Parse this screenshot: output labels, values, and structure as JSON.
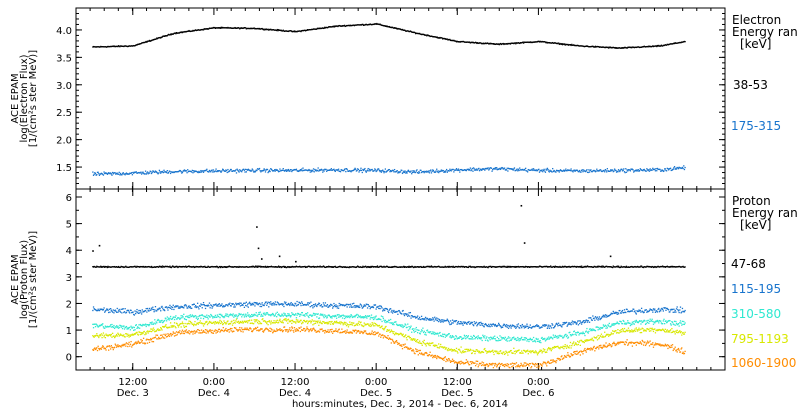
{
  "colors": {
    "black": "#000000",
    "blue": "#1874cd",
    "cyan": "#2ee8d0",
    "yellow": "#d8e800",
    "orange": "#ff8c00"
  },
  "chart_data": [
    {
      "type": "scatter",
      "panel": "electron",
      "ylabel": [
        "ACE EPAM",
        "log(Electron Flux)",
        "[1/(cm²s ster MeV)]"
      ],
      "ylim": [
        1.1,
        4.4
      ],
      "yticks": [
        "4.0",
        "3.5",
        "3.0",
        "2.5",
        "2.0",
        "1.5"
      ],
      "yticks_values": [
        4.0,
        3.5,
        3.0,
        2.5,
        2.0,
        1.5
      ],
      "legend_title": [
        "Electron",
        "Energy ran",
        "[keV]"
      ],
      "series": [
        {
          "name": "38-53",
          "color": "#000000",
          "x": [
            0.0,
            0.25,
            0.5,
            0.75,
            1.0,
            1.25,
            1.5,
            1.75,
            2.0,
            2.25,
            2.5,
            2.75,
            3.0,
            3.25,
            3.5,
            3.65
          ],
          "y": [
            3.7,
            3.72,
            3.95,
            4.05,
            4.04,
            3.98,
            4.08,
            4.12,
            3.95,
            3.8,
            3.75,
            3.8,
            3.72,
            3.68,
            3.72,
            3.8
          ]
        },
        {
          "name": "175-315",
          "color": "#1874cd",
          "x": [
            0.0,
            0.25,
            0.5,
            0.75,
            1.0,
            1.25,
            1.5,
            1.75,
            2.0,
            2.25,
            2.5,
            2.75,
            3.0,
            3.25,
            3.5,
            3.65
          ],
          "y": [
            1.38,
            1.4,
            1.43,
            1.44,
            1.45,
            1.45,
            1.46,
            1.45,
            1.42,
            1.46,
            1.48,
            1.45,
            1.44,
            1.45,
            1.46,
            1.5
          ]
        }
      ]
    },
    {
      "type": "scatter",
      "panel": "proton",
      "ylabel": [
        "ACE EPAM",
        "log(Proton Flux)",
        "[1/(cm²s ster MeV)]"
      ],
      "ylim": [
        -0.5,
        6.3
      ],
      "yticks": [
        "6",
        "5",
        "4",
        "3",
        "2",
        "1",
        "0"
      ],
      "yticks_values": [
        6,
        5,
        4,
        3,
        2,
        1,
        0
      ],
      "legend_title": [
        "Proton",
        "Energy ran",
        "[keV]"
      ],
      "series": [
        {
          "name": "47-68",
          "color": "#000000",
          "x": [
            0.0,
            0.5,
            1.0,
            1.5,
            2.0,
            2.5,
            3.0,
            3.5,
            3.65
          ],
          "y": [
            3.4,
            3.4,
            3.4,
            3.4,
            3.4,
            3.4,
            3.4,
            3.4,
            3.4
          ],
          "spikes": [
            [
              0.0,
              4.0
            ],
            [
              0.04,
              4.2
            ],
            [
              1.01,
              4.9
            ],
            [
              1.02,
              4.1
            ],
            [
              1.04,
              3.7
            ],
            [
              1.15,
              3.8
            ],
            [
              1.25,
              3.6
            ],
            [
              2.64,
              5.7
            ],
            [
              2.66,
              4.3
            ],
            [
              3.19,
              3.8
            ]
          ]
        },
        {
          "name": "115-195",
          "color": "#1874cd",
          "x": [
            0.0,
            0.25,
            0.5,
            0.75,
            1.0,
            1.25,
            1.5,
            1.75,
            2.0,
            2.25,
            2.5,
            2.75,
            3.0,
            3.25,
            3.5,
            3.65
          ],
          "y": [
            1.8,
            1.7,
            1.9,
            1.95,
            2.0,
            2.0,
            1.95,
            1.9,
            1.5,
            1.3,
            1.2,
            1.15,
            1.3,
            1.7,
            1.8,
            1.75
          ]
        },
        {
          "name": "310-580",
          "color": "#2ee8d0",
          "x": [
            0.0,
            0.25,
            0.5,
            0.75,
            1.0,
            1.25,
            1.5,
            1.75,
            2.0,
            2.25,
            2.5,
            2.75,
            3.0,
            3.25,
            3.5,
            3.65
          ],
          "y": [
            1.2,
            1.1,
            1.5,
            1.55,
            1.6,
            1.6,
            1.55,
            1.5,
            1.0,
            0.75,
            0.7,
            0.65,
            0.9,
            1.3,
            1.35,
            1.25
          ]
        },
        {
          "name": "795-1193",
          "color": "#d8e800",
          "x": [
            0.0,
            0.25,
            0.5,
            0.75,
            1.0,
            1.25,
            1.5,
            1.75,
            2.0,
            2.25,
            2.5,
            2.75,
            3.0,
            3.25,
            3.5,
            3.65
          ],
          "y": [
            0.8,
            0.85,
            1.2,
            1.3,
            1.35,
            1.35,
            1.3,
            1.2,
            0.6,
            0.25,
            0.2,
            0.2,
            0.55,
            1.0,
            1.05,
            0.9
          ]
        },
        {
          "name": "1060-1900",
          "color": "#ff8c00",
          "x": [
            0.0,
            0.25,
            0.5,
            0.75,
            1.0,
            1.25,
            1.5,
            1.75,
            2.0,
            2.25,
            2.5,
            2.75,
            3.0,
            3.25,
            3.5,
            3.65
          ],
          "y": [
            0.3,
            0.5,
            0.9,
            1.0,
            1.05,
            1.05,
            1.0,
            0.9,
            0.2,
            -0.2,
            -0.3,
            -0.3,
            0.2,
            0.55,
            0.5,
            0.2
          ]
        }
      ]
    }
  ],
  "x_axis": {
    "xlim": [
      -0.1,
      3.9
    ],
    "ticks": [
      {
        "x": 0.25,
        "time": "12:00",
        "date": "Dec. 3"
      },
      {
        "x": 0.75,
        "time": "0:00",
        "date": "Dec. 4"
      },
      {
        "x": 1.25,
        "time": "12:00",
        "date": "Dec. 4"
      },
      {
        "x": 1.75,
        "time": "0:00",
        "date": "Dec. 5"
      },
      {
        "x": 2.25,
        "time": "12:00",
        "date": "Dec. 5"
      },
      {
        "x": 2.75,
        "time": "0:00",
        "date": "Dec. 6"
      }
    ],
    "xlabel": "hours:minutes, Dec.  3, 2014 - Dec.  6, 2014"
  }
}
